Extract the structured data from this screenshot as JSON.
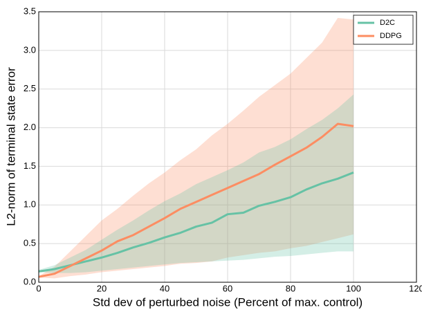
{
  "chart_data": {
    "type": "line",
    "xlabel": "Std dev of perturbed noise (Percent of max. control)",
    "ylabel": "L2-norm of terminal state error",
    "x": [
      0,
      5,
      10,
      15,
      20,
      25,
      30,
      35,
      40,
      45,
      50,
      55,
      60,
      65,
      70,
      75,
      80,
      85,
      90,
      95,
      100
    ],
    "series": [
      {
        "name": "D2C",
        "color": "#66c2a5",
        "values": [
          0.14,
          0.17,
          0.22,
          0.27,
          0.32,
          0.38,
          0.45,
          0.51,
          0.58,
          0.64,
          0.72,
          0.77,
          0.88,
          0.9,
          0.99,
          1.04,
          1.1,
          1.2,
          1.28,
          1.34,
          1.42
        ],
        "lower": [
          0.13,
          0.12,
          0.12,
          0.13,
          0.15,
          0.17,
          0.19,
          0.21,
          0.23,
          0.25,
          0.26,
          0.27,
          0.28,
          0.29,
          0.31,
          0.33,
          0.34,
          0.36,
          0.38,
          0.4,
          0.4
        ],
        "upper": [
          0.16,
          0.22,
          0.32,
          0.42,
          0.55,
          0.68,
          0.8,
          0.93,
          1.05,
          1.15,
          1.27,
          1.36,
          1.45,
          1.55,
          1.68,
          1.75,
          1.85,
          1.98,
          2.1,
          2.25,
          2.43
        ]
      },
      {
        "name": "DDPG",
        "color": "#fc8d62",
        "values": [
          0.07,
          0.11,
          0.21,
          0.31,
          0.41,
          0.53,
          0.61,
          0.72,
          0.83,
          0.95,
          1.04,
          1.13,
          1.22,
          1.31,
          1.4,
          1.52,
          1.63,
          1.74,
          1.88,
          2.05,
          2.02
        ],
        "lower": [
          0.06,
          0.05,
          0.08,
          0.1,
          0.13,
          0.15,
          0.17,
          0.19,
          0.21,
          0.24,
          0.25,
          0.27,
          0.32,
          0.35,
          0.38,
          0.4,
          0.44,
          0.47,
          0.52,
          0.57,
          0.62
        ],
        "upper": [
          0.08,
          0.2,
          0.4,
          0.6,
          0.8,
          0.95,
          1.12,
          1.28,
          1.42,
          1.58,
          1.72,
          1.9,
          2.05,
          2.22,
          2.4,
          2.55,
          2.7,
          2.9,
          3.1,
          3.42,
          3.4
        ]
      }
    ],
    "xlim": [
      0,
      120
    ],
    "xticks": [
      0,
      20,
      40,
      60,
      80,
      100,
      120
    ],
    "ylim": [
      0,
      3.5
    ],
    "yticks": [
      {
        "value": 0,
        "label": "0.0"
      },
      0.5,
      {
        "value": 1,
        "label": "1.0"
      },
      1.5,
      {
        "value": 2,
        "label": "2.0"
      },
      2.5,
      {
        "value": 3,
        "label": "3.0"
      },
      3.5
    ],
    "grid": true,
    "legend": "upper right"
  }
}
